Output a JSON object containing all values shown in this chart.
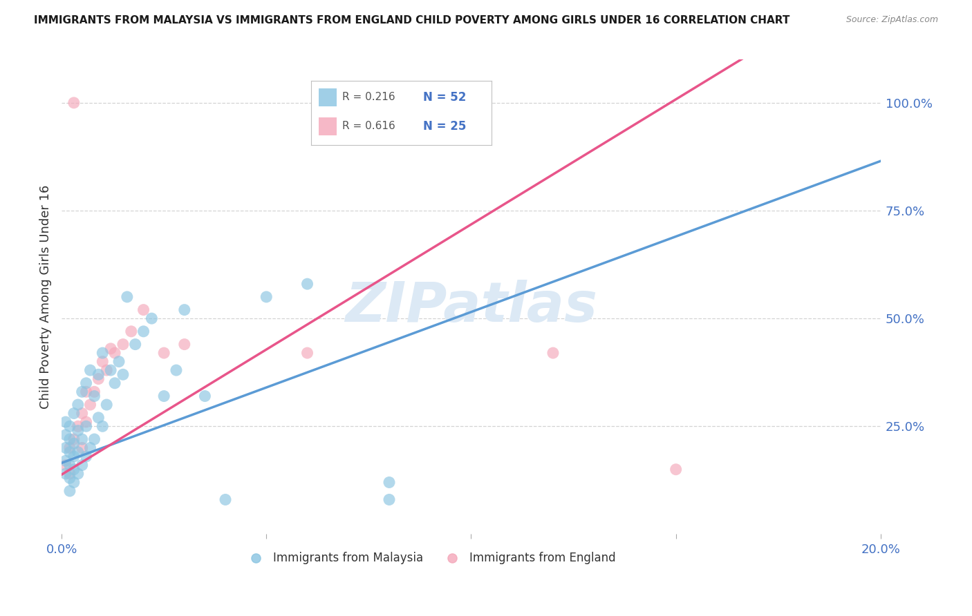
{
  "title": "IMMIGRANTS FROM MALAYSIA VS IMMIGRANTS FROM ENGLAND CHILD POVERTY AMONG GIRLS UNDER 16 CORRELATION CHART",
  "source": "Source: ZipAtlas.com",
  "ylabel": "Child Poverty Among Girls Under 16",
  "malaysia_color": "#89c4e1",
  "england_color": "#f4a7b9",
  "malaysia_line_color": "#5b9bd5",
  "england_line_color": "#e8558a",
  "watermark_color": "#dce9f5",
  "background_color": "#ffffff",
  "grid_color": "#d0d0d0",
  "xlim": [
    0.0,
    0.2
  ],
  "ylim": [
    0.0,
    1.1
  ],
  "malaysia_x": [
    0.001,
    0.001,
    0.001,
    0.001,
    0.002,
    0.002,
    0.002,
    0.002,
    0.002,
    0.002,
    0.003,
    0.003,
    0.003,
    0.003,
    0.003,
    0.004,
    0.004,
    0.004,
    0.004,
    0.005,
    0.005,
    0.005,
    0.006,
    0.006,
    0.006,
    0.007,
    0.007,
    0.008,
    0.008,
    0.009,
    0.009,
    0.01,
    0.01,
    0.011,
    0.012,
    0.013,
    0.014,
    0.015,
    0.016,
    0.017,
    0.018,
    0.019,
    0.02,
    0.022,
    0.024,
    0.026,
    0.03,
    0.035,
    0.04,
    0.05,
    0.06,
    0.08
  ],
  "malaysia_y": [
    0.14,
    0.17,
    0.19,
    0.22,
    0.1,
    0.15,
    0.18,
    0.2,
    0.23,
    0.26,
    0.12,
    0.16,
    0.19,
    0.22,
    0.25,
    0.14,
    0.18,
    0.22,
    0.27,
    0.16,
    0.21,
    0.28,
    0.18,
    0.23,
    0.3,
    0.2,
    0.28,
    0.22,
    0.32,
    0.25,
    0.35,
    0.23,
    0.38,
    0.3,
    0.42,
    0.35,
    0.4,
    0.37,
    0.55,
    0.38,
    0.32,
    0.44,
    0.47,
    0.5,
    0.42,
    0.35,
    0.38,
    0.32,
    0.08,
    0.55,
    0.58,
    0.08
  ],
  "england_x": [
    0.001,
    0.002,
    0.002,
    0.003,
    0.003,
    0.004,
    0.004,
    0.005,
    0.005,
    0.006,
    0.007,
    0.008,
    0.009,
    0.01,
    0.011,
    0.012,
    0.013,
    0.015,
    0.017,
    0.02,
    0.025,
    0.06,
    0.12,
    0.003,
    0.006
  ],
  "england_y": [
    0.16,
    0.14,
    0.2,
    0.18,
    0.22,
    0.2,
    0.25,
    0.22,
    0.28,
    0.26,
    0.3,
    0.33,
    0.36,
    0.4,
    0.43,
    0.38,
    0.41,
    0.44,
    0.47,
    0.52,
    0.42,
    0.42,
    1.0,
    0.13,
    0.32
  ],
  "reg_malaysia_slope": 3.5,
  "reg_malaysia_intercept": 0.165,
  "reg_england_slope": 5.8,
  "reg_england_intercept": 0.138
}
